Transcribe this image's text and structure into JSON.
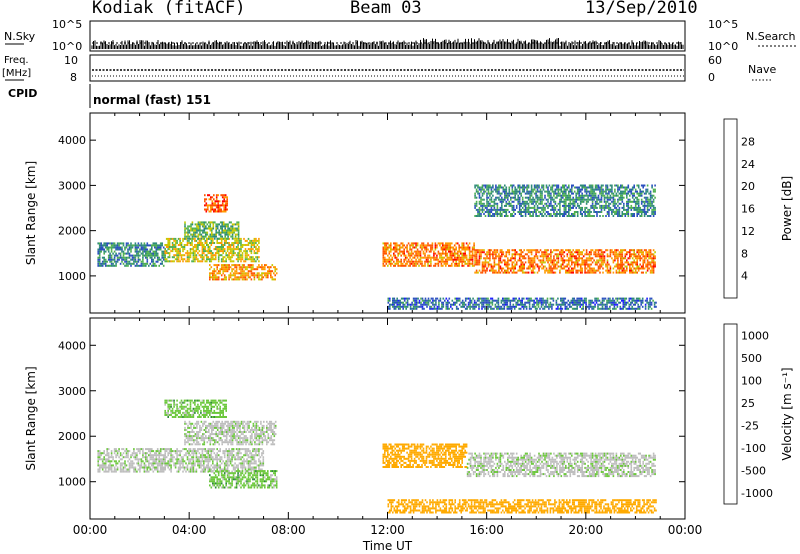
{
  "header": {
    "station": "Kodiak (fitACF)",
    "beam": "Beam 03",
    "date": "13/Sep/2010"
  },
  "strip_labels": {
    "nsky": "N.Sky",
    "nsky_ticks": [
      "10^5",
      "10^0"
    ],
    "nsearch": "N.Search",
    "nsearch_ticks": [
      "10^5",
      "10^0"
    ],
    "freq": "Freq.",
    "freq_unit": "[MHz]",
    "freq_ticks": [
      "10",
      "8"
    ],
    "nave": "Nave",
    "nave_ticks": [
      "60",
      "0"
    ],
    "cpid": "CPID",
    "cpid_value": "normal (fast) 151"
  },
  "colors": {
    "power_scale": [
      "#1a1aff",
      "#2a4fbf",
      "#2e8a7a",
      "#4fb04f",
      "#c8c800",
      "#ff9a00",
      "#ff5500",
      "#ff0000"
    ],
    "velocity_scale": [
      "#ff0000",
      "#ff6a00",
      "#ffaa00",
      "#bebebe",
      "#bebebe",
      "#6cc83c",
      "#2e8a3a",
      "#1a1aff"
    ]
  },
  "chart_data": [
    {
      "type": "heatmap",
      "panel": "power",
      "xlabel": "",
      "ylabel": "Slant Range [km]",
      "xlim": [
        "00:00",
        "24:00"
      ],
      "ylim": [
        180,
        4600
      ],
      "yticks": [
        1000,
        2000,
        3000,
        4000
      ],
      "colorbar": {
        "label": "Power [dB]",
        "ticks": [
          4,
          8,
          12,
          16,
          20,
          24,
          28
        ],
        "range": [
          0,
          32
        ]
      },
      "echo_regions": [
        {
          "t_start": 0.3,
          "t_end": 3.0,
          "r_min": 1200,
          "r_max": 1700,
          "value": 10
        },
        {
          "t_start": 3.0,
          "t_end": 6.8,
          "r_min": 1300,
          "r_max": 1800,
          "value": 18
        },
        {
          "t_start": 3.8,
          "t_end": 6.0,
          "r_min": 1800,
          "r_max": 2200,
          "value": 14
        },
        {
          "t_start": 4.6,
          "t_end": 5.5,
          "r_min": 2400,
          "r_max": 2800,
          "value": 26
        },
        {
          "t_start": 4.8,
          "t_end": 7.5,
          "r_min": 900,
          "r_max": 1250,
          "value": 22
        },
        {
          "t_start": 11.8,
          "t_end": 15.5,
          "r_min": 1200,
          "r_max": 1700,
          "value": 24
        },
        {
          "t_start": 15.5,
          "t_end": 22.8,
          "r_min": 1050,
          "r_max": 1550,
          "value": 24
        },
        {
          "t_start": 15.5,
          "t_end": 22.8,
          "r_min": 2300,
          "r_max": 3000,
          "value": 10
        },
        {
          "t_start": 12.0,
          "t_end": 22.8,
          "r_min": 250,
          "r_max": 500,
          "value": 8
        }
      ]
    },
    {
      "type": "heatmap",
      "panel": "velocity",
      "xlabel": "Time UT",
      "ylabel": "Slant Range [km]",
      "xlim": [
        "00:00",
        "24:00"
      ],
      "ylim": [
        180,
        4600
      ],
      "xticks": [
        "00:00",
        "04:00",
        "08:00",
        "12:00",
        "16:00",
        "20:00",
        "00:00"
      ],
      "yticks": [
        1000,
        2000,
        3000,
        4000
      ],
      "colorbar": {
        "label": "Velocity [m s⁻¹]",
        "ticks": [
          -1000,
          -500,
          -100,
          -25,
          25,
          100,
          500,
          1000
        ]
      },
      "echo_regions": [
        {
          "t_start": 0.3,
          "t_end": 7.0,
          "r_min": 1200,
          "r_max": 1700,
          "value": 0
        },
        {
          "t_start": 3.8,
          "t_end": 7.5,
          "r_min": 1800,
          "r_max": 2300,
          "value": 0
        },
        {
          "t_start": 4.8,
          "t_end": 7.5,
          "r_min": 850,
          "r_max": 1250,
          "value": 60
        },
        {
          "t_start": 3.0,
          "t_end": 5.5,
          "r_min": 2400,
          "r_max": 2800,
          "value": 60
        },
        {
          "t_start": 11.8,
          "t_end": 15.2,
          "r_min": 1300,
          "r_max": 1800,
          "value": -200
        },
        {
          "t_start": 15.2,
          "t_end": 22.8,
          "r_min": 1100,
          "r_max": 1600,
          "value": 0
        },
        {
          "t_start": 12.0,
          "t_end": 22.8,
          "r_min": 300,
          "r_max": 600,
          "value": -150
        }
      ]
    }
  ]
}
